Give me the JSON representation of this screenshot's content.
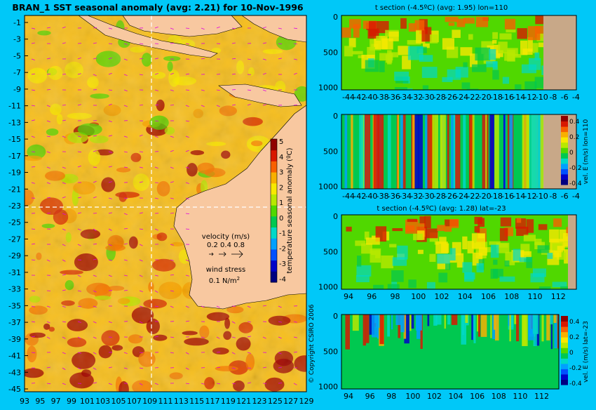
{
  "colors": {
    "background": "#00c8f8",
    "land": "#f8c8a0",
    "bathymetry": "#c8a888",
    "colormap": [
      "#000080",
      "#0000c8",
      "#0050ff",
      "#00a0ff",
      "#00d8c8",
      "#00c850",
      "#50d800",
      "#b8e800",
      "#f8e800",
      "#f8b000",
      "#f86000",
      "#d81800",
      "#900000"
    ]
  },
  "map": {
    "title": "BRAN_1  SST seasonal anomaly  (avg: 2.21)  for 10-Nov-1996",
    "lon_ticks": [
      "93",
      "95",
      "97",
      "99",
      "101",
      "103",
      "105",
      "107",
      "109",
      "111",
      "113",
      "115",
      "117",
      "119",
      "121",
      "123",
      "125",
      "127",
      "129"
    ],
    "lat_ticks": [
      "-1",
      "-3",
      "-5",
      "-7",
      "-9",
      "-11",
      "-13",
      "-15",
      "-17",
      "-19",
      "-21",
      "-23",
      "-25",
      "-27",
      "-29",
      "-31",
      "-33",
      "-35",
      "-37",
      "-39",
      "-41",
      "-43",
      "-45"
    ],
    "colorbar_label": "temperature seasonal anomaly (ºC)",
    "colorbar_ticks": [
      "5",
      "4",
      "3",
      "2",
      "1",
      "0",
      "-1",
      "-2",
      "-3",
      "-4"
    ],
    "velocity_label": "velocity (m/s)",
    "velocity_scale": "0.2 0.4 0.8",
    "wind_label": "wind stress",
    "wind_scale": "0.1 N/m",
    "wind_scale_sup": "2",
    "copyright": "© Copyright CSIRO 2006",
    "lon_section": 110,
    "lat_section": -23
  },
  "panels": [
    {
      "id": "t-lon",
      "title": "t section (-4.5ºC) (avg: 1.95) lon=110",
      "x_ticks": [
        "-44",
        "-42",
        "-40",
        "-38",
        "-36",
        "-34",
        "-32",
        "-30",
        "-28",
        "-26",
        "-24",
        "-22",
        "-20",
        "-18",
        "-16",
        "-14",
        "-12",
        "-10",
        "-8",
        "-6",
        "-4"
      ],
      "y_ticks": [
        "0",
        "500",
        "1000"
      ],
      "colorbar_label": "",
      "colorbar_ticks": []
    },
    {
      "id": "v-lon",
      "title": "",
      "x_ticks": [
        "-44",
        "-42",
        "-40",
        "-38",
        "-36",
        "-34",
        "-32",
        "-30",
        "-28",
        "-26",
        "-24",
        "-22",
        "-20",
        "-18",
        "-16",
        "-14",
        "-12",
        "-10",
        "-8",
        "-6",
        "-4"
      ],
      "y_ticks": [
        "0",
        "500",
        "1000"
      ],
      "colorbar_label": "vel. E (m/s) lon=110",
      "colorbar_ticks": [
        "0.4",
        "0.2",
        "0",
        "-0.2",
        "-0.4"
      ]
    },
    {
      "id": "t-lat",
      "title": "t section (-4.5ºC) (avg: 1.28) lat=-23",
      "x_ticks": [
        "94",
        "96",
        "98",
        "100",
        "102",
        "104",
        "106",
        "108",
        "110",
        "112"
      ],
      "y_ticks": [
        "0",
        "500",
        "1000"
      ],
      "colorbar_label": "",
      "colorbar_ticks": []
    },
    {
      "id": "v-lat",
      "title": "",
      "x_ticks": [
        "94",
        "96",
        "98",
        "100",
        "102",
        "104",
        "106",
        "108",
        "110",
        "112"
      ],
      "y_ticks": [
        "0",
        "500",
        "1000"
      ],
      "colorbar_label": "vel. E (m/s) lat=-23",
      "colorbar_ticks": [
        "0.4",
        "0.2",
        "0",
        "-0.2",
        "-0.4"
      ]
    }
  ],
  "chart_data": [
    {
      "type": "heatmap",
      "title": "BRAN_1  SST seasonal anomaly  (avg: 2.21)  for 10-Nov-1996",
      "x_range": [
        93,
        130
      ],
      "y_range": [
        -45,
        0
      ],
      "colorbar_range": [
        -4,
        5
      ],
      "units": "ºC",
      "legend": "velocity (m/s) 0.2 0.4 0.8; wind stress 0.1 N/m2"
    },
    {
      "type": "heatmap",
      "title": "t section (-4.5ºC) (avg: 1.95) lon=110",
      "x_range": [
        -45,
        -2
      ],
      "y_range": [
        1050,
        0
      ]
    },
    {
      "type": "heatmap",
      "title": "",
      "x_range": [
        -45,
        -2
      ],
      "y_range": [
        1050,
        0
      ],
      "colorbar_range": [
        -0.5,
        0.5
      ],
      "colorbar_label": "vel. E (m/s) lon=110"
    },
    {
      "type": "heatmap",
      "title": "t section (-4.5ºC) (avg: 1.28) lat=-23",
      "x_range": [
        93,
        114
      ],
      "y_range": [
        1050,
        0
      ]
    },
    {
      "type": "heatmap",
      "title": "",
      "x_range": [
        93,
        114
      ],
      "y_range": [
        1050,
        0
      ],
      "colorbar_range": [
        -0.5,
        0.5
      ],
      "colorbar_label": "vel. E (m/s) lat=-23"
    }
  ]
}
